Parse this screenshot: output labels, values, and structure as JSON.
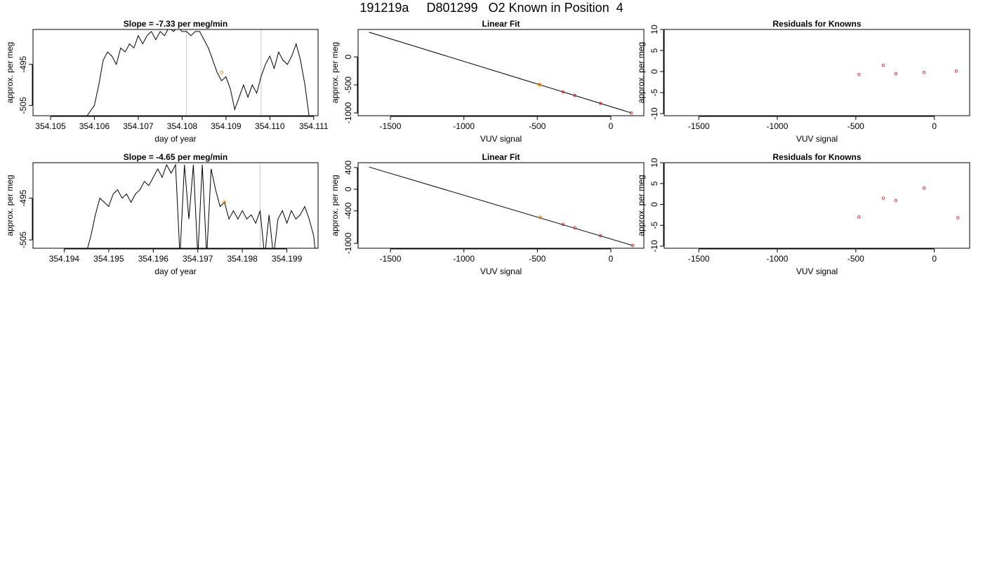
{
  "page_title": "191219a     D801299   O2 Known in Position  4",
  "chart_data": [
    {
      "id": "slope-1",
      "type": "line",
      "title": "Slope =  -7.33  per meg/min",
      "xlabel": "day of year",
      "ylabel": "approx. per meg",
      "xlim": [
        354.1046,
        354.1111
      ],
      "ylim": [
        -507.5,
        -486.5
      ],
      "xticks": [
        354.105,
        354.106,
        354.107,
        354.108,
        354.109,
        354.11,
        354.111
      ],
      "xtick_labels": [
        "354.105",
        "354.106",
        "354.107",
        "354.108",
        "354.109",
        "354.110",
        "354.111"
      ],
      "yticks": [
        -495,
        -505
      ],
      "ytick_labels": [
        "-495",
        "-505"
      ],
      "vlines": [
        354.1081,
        354.1098
      ],
      "marker": {
        "x": 354.1089,
        "y": -497,
        "color": "#ff8c00"
      },
      "series": [
        {
          "color": "#000000",
          "points": [
            [
              354.1058,
              -508
            ],
            [
              354.106,
              -505
            ],
            [
              354.1061,
              -500
            ],
            [
              354.1062,
              -494
            ],
            [
              354.1063,
              -492
            ],
            [
              354.1064,
              -493
            ],
            [
              354.1065,
              -495
            ],
            [
              354.1066,
              -491
            ],
            [
              354.1067,
              -492
            ],
            [
              354.1068,
              -490
            ],
            [
              354.1069,
              -491
            ],
            [
              354.107,
              -488
            ],
            [
              354.1071,
              -490
            ],
            [
              354.1072,
              -488
            ],
            [
              354.1073,
              -487
            ],
            [
              354.1074,
              -489
            ],
            [
              354.1075,
              -487
            ],
            [
              354.1076,
              -488
            ],
            [
              354.1077,
              -486
            ],
            [
              354.1078,
              -487
            ],
            [
              354.1079,
              -486
            ],
            [
              354.108,
              -487
            ],
            [
              354.1081,
              -487
            ],
            [
              354.1082,
              -488
            ],
            [
              354.1083,
              -487
            ],
            [
              354.1084,
              -487
            ],
            [
              354.1085,
              -489
            ],
            [
              354.1086,
              -491
            ],
            [
              354.1087,
              -494
            ],
            [
              354.1088,
              -497
            ],
            [
              354.1089,
              -499
            ],
            [
              354.109,
              -498
            ],
            [
              354.1091,
              -501
            ],
            [
              354.1092,
              -506
            ],
            [
              354.1093,
              -503
            ],
            [
              354.1094,
              -500
            ],
            [
              354.1095,
              -503
            ],
            [
              354.1096,
              -500
            ],
            [
              354.1097,
              -502
            ],
            [
              354.1098,
              -498
            ],
            [
              354.1099,
              -495
            ],
            [
              354.11,
              -493
            ],
            [
              354.1101,
              -496
            ],
            [
              354.1102,
              -492
            ],
            [
              354.1103,
              -494
            ],
            [
              354.1104,
              -495
            ],
            [
              354.1105,
              -493
            ],
            [
              354.1106,
              -490
            ],
            [
              354.1107,
              -494
            ],
            [
              354.1108,
              -500
            ],
            [
              354.1109,
              -508
            ]
          ]
        }
      ]
    },
    {
      "id": "fit-1",
      "type": "scatter",
      "title": "Linear Fit",
      "xlabel": "VUV signal",
      "ylabel": "approx. per meg",
      "xlim": [
        -1720,
        225
      ],
      "ylim": [
        -1050,
        490
      ],
      "xticks": [
        -1500,
        -1000,
        -500,
        0
      ],
      "xtick_labels": [
        "-1500",
        "-1000",
        "-500",
        "0"
      ],
      "yticks": [
        0,
        -500,
        -1000
      ],
      "ytick_labels": [
        "0",
        "-500",
        "-1000"
      ],
      "fit_line": [
        [
          -1645,
          440
        ],
        [
          140,
          -1000
        ]
      ],
      "points": [
        {
          "x": -485,
          "y": -495
        },
        {
          "x": -325,
          "y": -624
        },
        {
          "x": -245,
          "y": -689
        },
        {
          "x": -70,
          "y": -830
        },
        {
          "x": 140,
          "y": -1000
        }
      ],
      "highlight": {
        "x": -485,
        "y": -495,
        "color": "#ff8c00"
      },
      "point_color": "#d62728"
    },
    {
      "id": "resid-1",
      "type": "scatter",
      "title": "Residuals for Knowns",
      "xlabel": "VUV signal",
      "ylabel": "approx. per meg",
      "xlim": [
        -1720,
        225
      ],
      "ylim": [
        -10.5,
        10
      ],
      "xticks": [
        -1500,
        -1000,
        -500,
        0
      ],
      "xtick_labels": [
        "-1500",
        "-1000",
        "-500",
        "0"
      ],
      "yticks": [
        10,
        5,
        0,
        -5,
        -10
      ],
      "ytick_labels": [
        "10",
        "5",
        "0",
        "-5",
        "-10"
      ],
      "points": [
        {
          "x": -480,
          "y": -0.7
        },
        {
          "x": -325,
          "y": 1.5
        },
        {
          "x": -245,
          "y": -0.5
        },
        {
          "x": -65,
          "y": -0.2
        },
        {
          "x": 140,
          "y": 0.1
        }
      ],
      "point_color": "#d62728"
    },
    {
      "id": "slope-2",
      "type": "line",
      "title": "Slope =  -4.65  per meg/min",
      "xlabel": "day of year",
      "ylabel": "approx. per meg",
      "xlim": [
        354.1933,
        354.1997
      ],
      "ylim": [
        -507,
        -486.5
      ],
      "xticks": [
        354.194,
        354.195,
        354.196,
        354.197,
        354.198,
        354.199
      ],
      "xtick_labels": [
        "354.194",
        "354.195",
        "354.196",
        "354.197",
        "354.198",
        "354.199"
      ],
      "yticks": [
        -495,
        -505
      ],
      "ytick_labels": [
        "-495",
        "-505"
      ],
      "vlines": [
        354.1984
      ],
      "marker": {
        "x": 354.1976,
        "y": -496,
        "color": "#ff8c00"
      },
      "series": [
        {
          "color": "#000000",
          "points": [
            [
              354.1945,
              -508
            ],
            [
              354.1946,
              -504
            ],
            [
              354.1947,
              -499
            ],
            [
              354.1948,
              -495
            ],
            [
              354.1949,
              -496
            ],
            [
              354.195,
              -497
            ],
            [
              354.1951,
              -494
            ],
            [
              354.1952,
              -493
            ],
            [
              354.1953,
              -495
            ],
            [
              354.1954,
              -494
            ],
            [
              354.1955,
              -496
            ],
            [
              354.1956,
              -494
            ],
            [
              354.1957,
              -493
            ],
            [
              354.1958,
              -491
            ],
            [
              354.1959,
              -492
            ],
            [
              354.196,
              -490
            ],
            [
              354.1961,
              -488
            ],
            [
              354.1962,
              -490
            ],
            [
              354.1963,
              -487
            ],
            [
              354.1964,
              -489
            ],
            [
              354.1965,
              -487
            ],
            [
              354.1966,
              -509
            ],
            [
              354.1967,
              -487
            ],
            [
              354.1968,
              -500
            ],
            [
              354.1969,
              -487
            ],
            [
              354.197,
              -509
            ],
            [
              354.1971,
              -487
            ],
            [
              354.1972,
              -509
            ],
            [
              354.1973,
              -488
            ],
            [
              354.1974,
              -493
            ],
            [
              354.1975,
              -497
            ],
            [
              354.1976,
              -496
            ],
            [
              354.1977,
              -500
            ],
            [
              354.1978,
              -498
            ],
            [
              354.1979,
              -500
            ],
            [
              354.198,
              -498
            ],
            [
              354.1981,
              -500
            ],
            [
              354.1982,
              -499
            ],
            [
              354.1983,
              -501
            ],
            [
              354.1984,
              -498
            ],
            [
              354.1985,
              -509
            ],
            [
              354.1986,
              -499
            ],
            [
              354.1987,
              -509
            ],
            [
              354.1988,
              -500
            ],
            [
              354.1989,
              -498
            ],
            [
              354.199,
              -501
            ],
            [
              354.1991,
              -498
            ],
            [
              354.1992,
              -500
            ],
            [
              354.1993,
              -499
            ],
            [
              354.1994,
              -497
            ],
            [
              354.1995,
              -500
            ],
            [
              354.1996,
              -504
            ],
            [
              354.19965,
              -509
            ]
          ]
        }
      ]
    },
    {
      "id": "fit-2",
      "type": "scatter",
      "title": "Linear Fit",
      "xlabel": "VUV signal",
      "ylabel": "approx. per meg",
      "xlim": [
        -1720,
        225
      ],
      "ylim": [
        -1090,
        490
      ],
      "xticks": [
        -1500,
        -1000,
        -500,
        0
      ],
      "xtick_labels": [
        "-1500",
        "-1000",
        "-500",
        "0"
      ],
      "yticks": [
        400,
        0,
        -400,
        -1000
      ],
      "ytick_labels": [
        "400",
        "0",
        "-400",
        "-1000"
      ],
      "fit_line": [
        [
          -1645,
          410
        ],
        [
          150,
          -1040
        ]
      ],
      "points": [
        {
          "x": -480,
          "y": -520
        },
        {
          "x": -325,
          "y": -648
        },
        {
          "x": -245,
          "y": -710
        },
        {
          "x": -70,
          "y": -860
        },
        {
          "x": 150,
          "y": -1040
        }
      ],
      "highlight": {
        "x": -480,
        "y": -520,
        "color": "#ff8c00"
      },
      "point_color": "#d62728"
    },
    {
      "id": "resid-2",
      "type": "scatter",
      "title": "Residuals for Knowns",
      "xlabel": "VUV signal",
      "ylabel": "approx. per meg",
      "xlim": [
        -1720,
        225
      ],
      "ylim": [
        -10.5,
        10
      ],
      "xticks": [
        -1500,
        -1000,
        -500,
        0
      ],
      "xtick_labels": [
        "-1500",
        "-1000",
        "-500",
        "0"
      ],
      "yticks": [
        10,
        5,
        0,
        -5,
        -10
      ],
      "ytick_labels": [
        "10",
        "5",
        "0",
        "-5",
        "-10"
      ],
      "points": [
        {
          "x": -480,
          "y": -3.0
        },
        {
          "x": -325,
          "y": 1.5
        },
        {
          "x": -245,
          "y": 0.9
        },
        {
          "x": -65,
          "y": 3.9
        },
        {
          "x": 150,
          "y": -3.2
        }
      ],
      "point_color": "#d62728"
    }
  ]
}
